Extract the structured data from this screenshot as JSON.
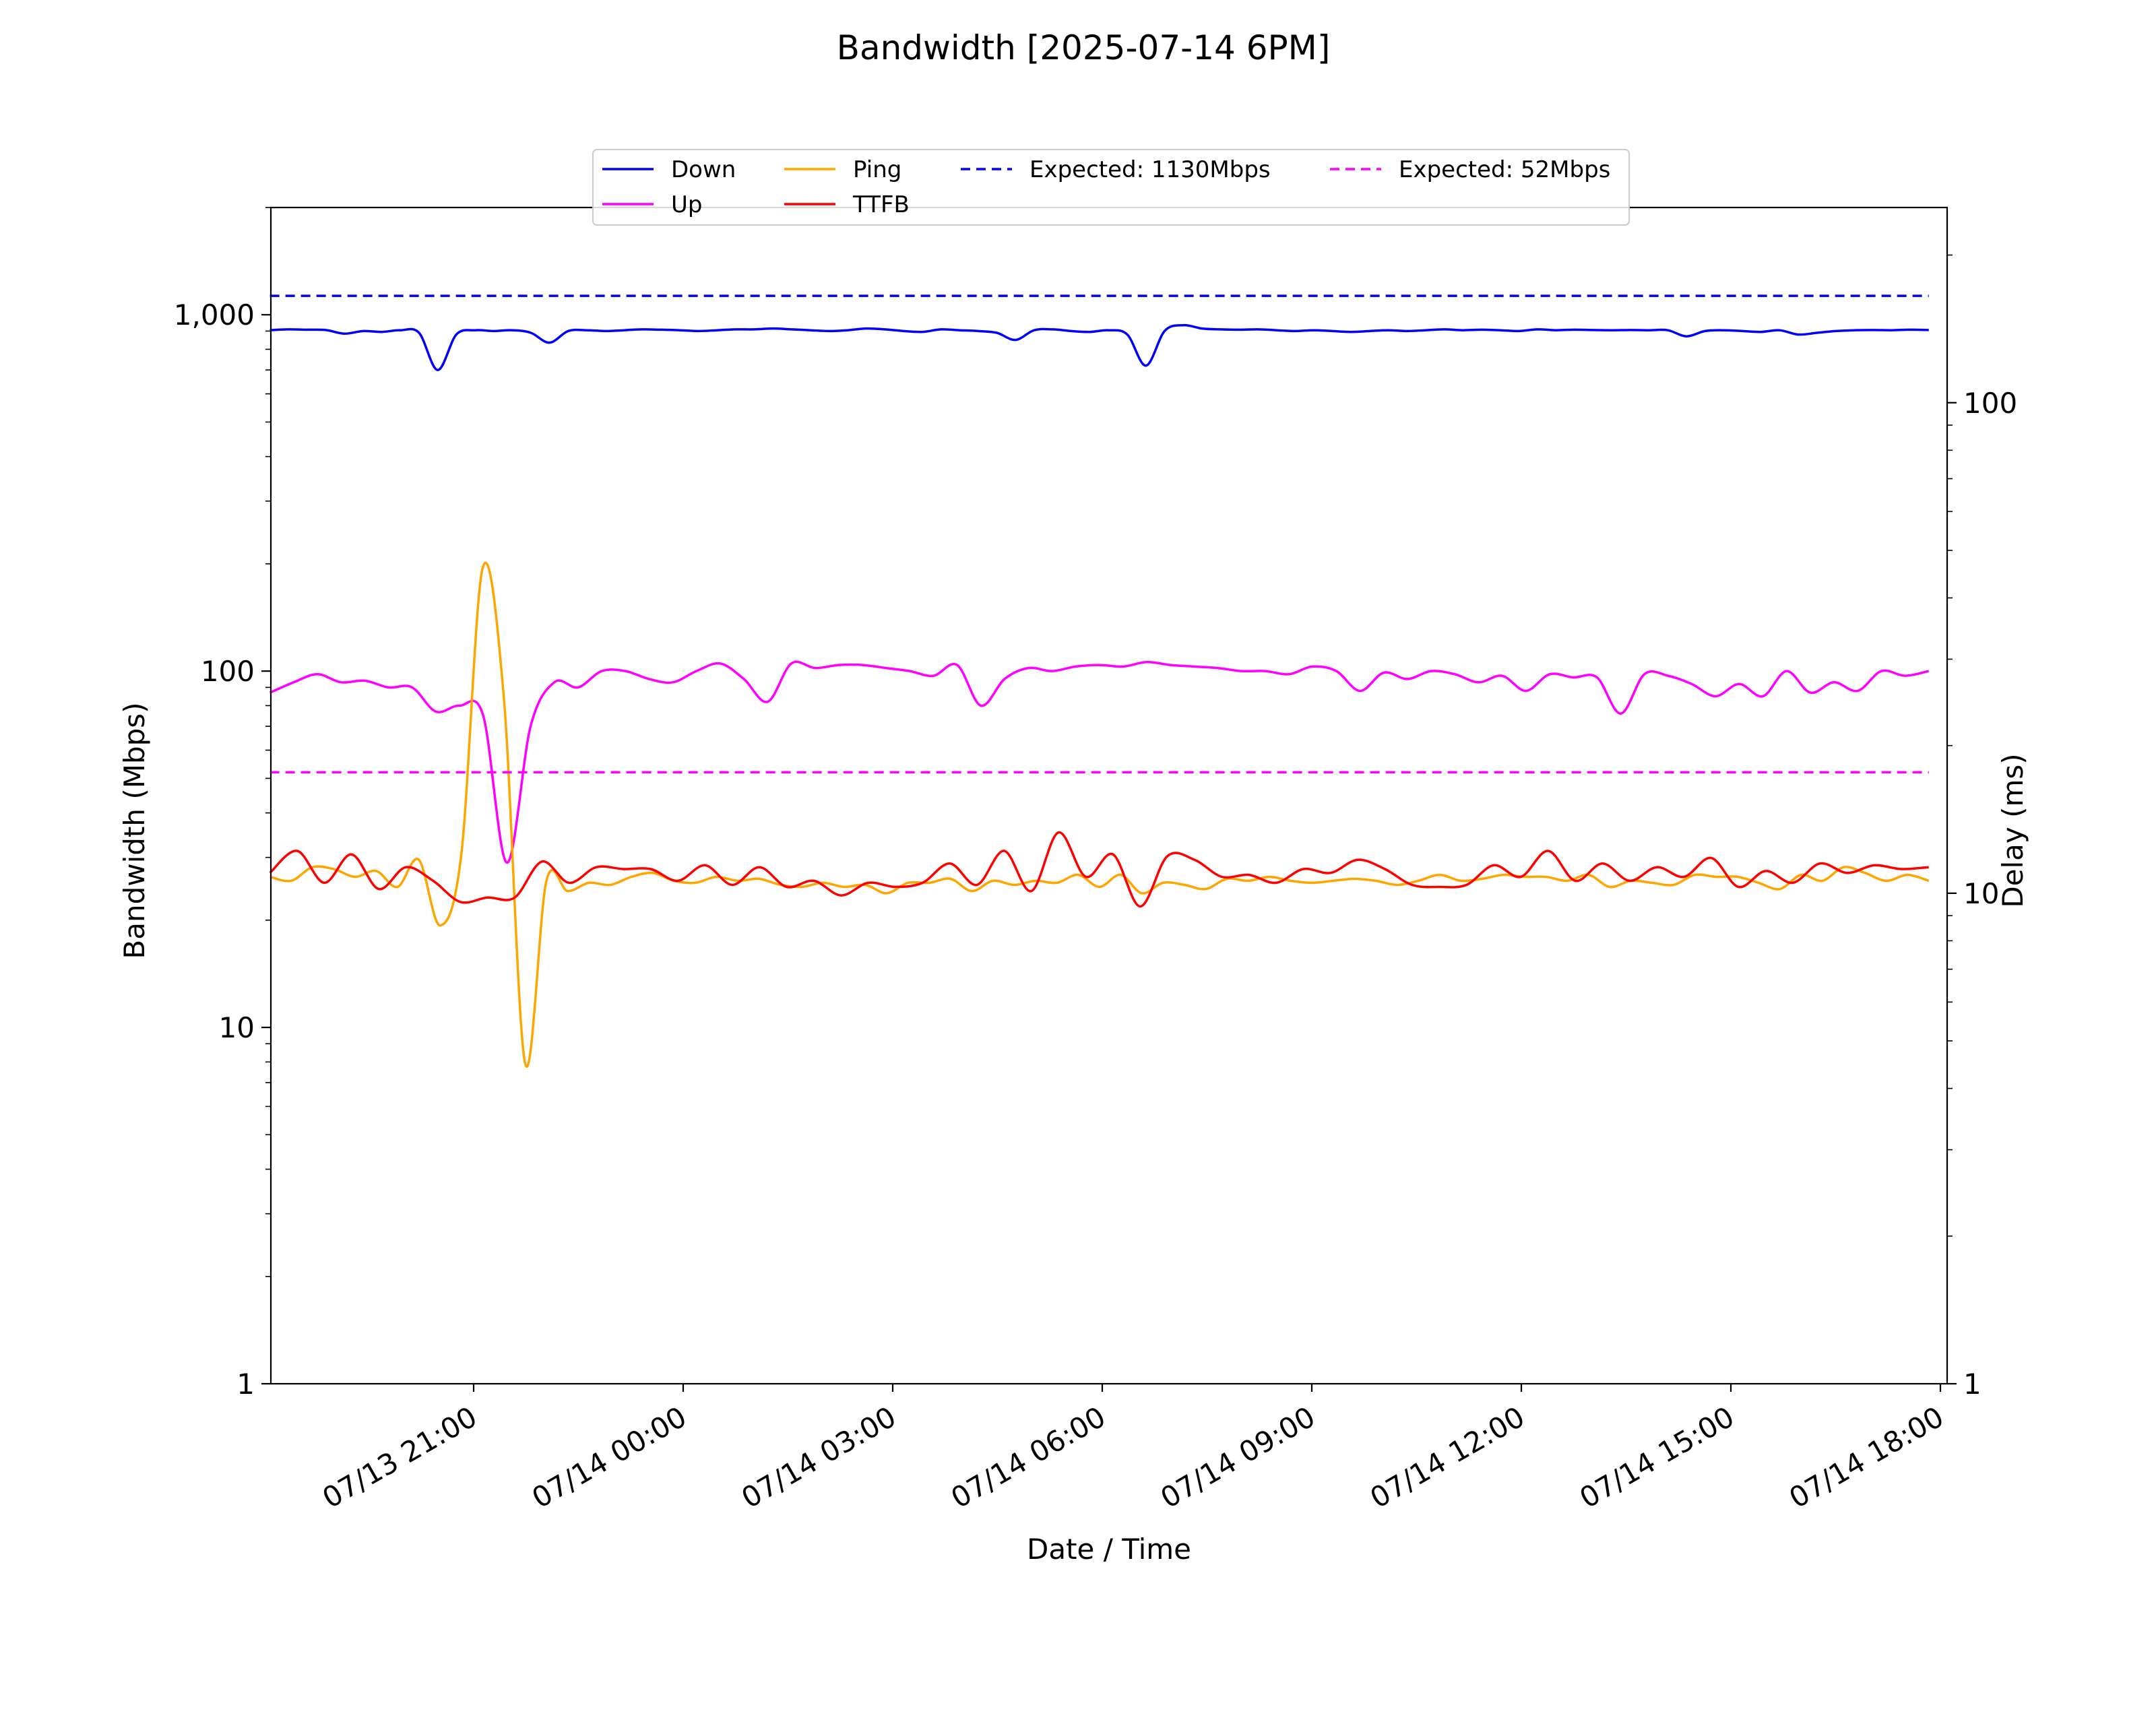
{
  "chart_data": {
    "type": "line",
    "title": "Bandwidth [2025-07-14 6PM]",
    "xlabel": "Date / Time",
    "ylabel": "Bandwidth (Mbps)",
    "ylabel_right": "Delay (ms)",
    "x_range": [
      "2025-07-13 18:05",
      "2025-07-14 18:00"
    ],
    "x_ticks": [
      {
        "t": "2025-07-13 21:00",
        "label": "07/13 21:00"
      },
      {
        "t": "2025-07-14 00:00",
        "label": "07/14 00:00"
      },
      {
        "t": "2025-07-14 03:00",
        "label": "07/14 03:00"
      },
      {
        "t": "2025-07-14 06:00",
        "label": "07/14 06:00"
      },
      {
        "t": "2025-07-14 09:00",
        "label": "07/14 09:00"
      },
      {
        "t": "2025-07-14 12:00",
        "label": "07/14 12:00"
      },
      {
        "t": "2025-07-14 15:00",
        "label": "07/14 15:00"
      },
      {
        "t": "2025-07-14 18:00",
        "label": "07/14 18:00"
      }
    ],
    "y_left": {
      "scale": "log",
      "range": [
        1,
        2000
      ],
      "ticks": [
        1,
        10,
        100,
        1000
      ],
      "tick_labels": [
        "1",
        "10",
        "100",
        "1,000"
      ]
    },
    "y_right": {
      "scale": "log",
      "range": [
        1,
        250
      ],
      "ticks": [
        1,
        10,
        100
      ],
      "tick_labels": [
        "1",
        "10",
        "100"
      ]
    },
    "grid": false,
    "legend_position": "top-center",
    "x_times": [
      "2025-07-13 18:05",
      "2025-07-13 18:20",
      "2025-07-13 18:35",
      "2025-07-13 18:50",
      "2025-07-13 19:05",
      "2025-07-13 19:20",
      "2025-07-13 19:35",
      "2025-07-13 19:50",
      "2025-07-13 20:05",
      "2025-07-13 20:20",
      "2025-07-13 20:35",
      "2025-07-13 20:50",
      "2025-07-13 21:05",
      "2025-07-13 21:20",
      "2025-07-13 21:35",
      "2025-07-13 21:50",
      "2025-07-13 22:05",
      "2025-07-13 22:20",
      "2025-07-13 22:35",
      "2025-07-13 22:50",
      "2025-07-13 23:05",
      "2025-07-13 23:20",
      "2025-07-13 23:35",
      "2025-07-13 23:50",
      "2025-07-14 00:05",
      "2025-07-14 00:20",
      "2025-07-14 00:35",
      "2025-07-14 00:50",
      "2025-07-14 01:05",
      "2025-07-14 01:20",
      "2025-07-14 01:35",
      "2025-07-14 01:50",
      "2025-07-14 02:05",
      "2025-07-14 02:20",
      "2025-07-14 02:35",
      "2025-07-14 02:50",
      "2025-07-14 03:05",
      "2025-07-14 03:20",
      "2025-07-14 03:35",
      "2025-07-14 03:50",
      "2025-07-14 04:05",
      "2025-07-14 04:20",
      "2025-07-14 04:35",
      "2025-07-14 04:50",
      "2025-07-14 05:05",
      "2025-07-14 05:20",
      "2025-07-14 05:35",
      "2025-07-14 05:50",
      "2025-07-14 06:05",
      "2025-07-14 06:20",
      "2025-07-14 06:35",
      "2025-07-14 06:50",
      "2025-07-14 07:05",
      "2025-07-14 07:20",
      "2025-07-14 07:35",
      "2025-07-14 07:50",
      "2025-07-14 08:05",
      "2025-07-14 08:20",
      "2025-07-14 08:35",
      "2025-07-14 08:50",
      "2025-07-14 09:05",
      "2025-07-14 09:20",
      "2025-07-14 09:35",
      "2025-07-14 09:50",
      "2025-07-14 10:05",
      "2025-07-14 10:20",
      "2025-07-14 10:35",
      "2025-07-14 10:50",
      "2025-07-14 11:05",
      "2025-07-14 11:20",
      "2025-07-14 11:35",
      "2025-07-14 11:50",
      "2025-07-14 12:05",
      "2025-07-14 12:20",
      "2025-07-14 12:35",
      "2025-07-14 12:50",
      "2025-07-14 13:05",
      "2025-07-14 13:20",
      "2025-07-14 13:35",
      "2025-07-14 13:50",
      "2025-07-14 14:05",
      "2025-07-14 14:20",
      "2025-07-14 14:35",
      "2025-07-14 14:50",
      "2025-07-14 15:05",
      "2025-07-14 15:20",
      "2025-07-14 15:35",
      "2025-07-14 15:50",
      "2025-07-14 16:05",
      "2025-07-14 16:20",
      "2025-07-14 16:35",
      "2025-07-14 16:50",
      "2025-07-14 17:05",
      "2025-07-14 17:20",
      "2025-07-14 17:35",
      "2025-07-14 17:50"
    ],
    "series": [
      {
        "name": "Down",
        "axis": "left",
        "color": "#0000ff",
        "style": "solid",
        "values": [
          905,
          910,
          908,
          906,
          885,
          900,
          895,
          905,
          890,
          700,
          880,
          905,
          900,
          905,
          890,
          835,
          900,
          905,
          900,
          905,
          910,
          908,
          905,
          900,
          905,
          910,
          910,
          915,
          910,
          905,
          900,
          905,
          915,
          910,
          900,
          895,
          910,
          905,
          900,
          890,
          850,
          905,
          910,
          900,
          895,
          905,
          880,
          720,
          900,
          935,
          915,
          910,
          908,
          910,
          905,
          900,
          905,
          900,
          895,
          900,
          905,
          900,
          905,
          910,
          905,
          908,
          905,
          900,
          910,
          905,
          908,
          906,
          905,
          906,
          905,
          905,
          870,
          900,
          905,
          900,
          895,
          905,
          880,
          890,
          900,
          905,
          906,
          905,
          908,
          906
        ]
      },
      {
        "name": "Up",
        "axis": "left",
        "color": "#ff00ff",
        "style": "solid",
        "values": [
          87,
          93,
          98,
          93,
          94,
          90,
          90,
          77,
          80,
          75,
          29,
          70,
          93,
          90,
          100,
          100,
          95,
          93,
          100,
          105,
          95,
          82,
          105,
          102,
          104,
          104,
          102,
          100,
          97,
          104,
          80,
          95,
          102,
          100,
          103,
          104,
          103,
          106,
          104,
          103,
          102,
          100,
          100,
          98,
          103,
          100,
          88,
          99,
          95,
          100,
          98,
          93,
          97,
          88,
          98,
          96,
          96,
          76,
          98,
          97,
          92,
          85,
          92,
          85,
          100,
          87,
          93,
          88,
          100,
          97,
          100
        ]
      },
      {
        "name": "Ping",
        "axis": "right",
        "color": "#ffa500",
        "style": "solid",
        "values": [
          10.8,
          10.6,
          11.3,
          11.2,
          10.8,
          11.1,
          10.3,
          11.7,
          8.6,
          12.0,
          46.0,
          25.0,
          4.5,
          10.6,
          10.1,
          10.5,
          10.4,
          10.8,
          11.0,
          10.6,
          10.5,
          10.8,
          10.6,
          10.7,
          10.4,
          10.3,
          10.5,
          10.3,
          10.4,
          10.0,
          10.5,
          10.5,
          10.7,
          10.1,
          10.6,
          10.4,
          10.6,
          10.5,
          10.9,
          10.3,
          10.9,
          10.0,
          10.5,
          10.4,
          10.2,
          10.7,
          10.6,
          10.8,
          10.6,
          10.5,
          10.6,
          10.7,
          10.6,
          10.4,
          10.6,
          10.9,
          10.6,
          10.7,
          10.9,
          10.8,
          10.8,
          10.6,
          10.9,
          10.3,
          10.6,
          10.5,
          10.4,
          10.9,
          10.8,
          10.8,
          10.5,
          10.2,
          10.9,
          10.6,
          11.3,
          11.0,
          10.6,
          10.9,
          10.6
        ]
      },
      {
        "name": "TTFB",
        "axis": "right",
        "color": "#ff0000",
        "style": "solid",
        "values": [
          11.0,
          12.2,
          10.5,
          12.0,
          10.2,
          11.3,
          10.6,
          9.6,
          9.8,
          9.8,
          11.6,
          10.5,
          11.3,
          11.2,
          11.2,
          10.6,
          11.4,
          10.4,
          11.3,
          10.3,
          10.6,
          9.9,
          10.5,
          10.3,
          10.5,
          11.5,
          10.4,
          12.2,
          10.1,
          13.3,
          10.8,
          12.0,
          9.4,
          11.9,
          11.7,
          10.8,
          10.9,
          10.5,
          11.2,
          11.0,
          11.7,
          11.2,
          10.4,
          10.3,
          10.4,
          11.4,
          10.8,
          12.2,
          10.6,
          11.5,
          10.6,
          11.3,
          10.8,
          11.8,
          10.3,
          11.1,
          10.5,
          11.5,
          11.0,
          11.4,
          11.2,
          11.3
        ]
      },
      {
        "name": "Expected: 1130Mbps",
        "axis": "left",
        "color": "#0000ff",
        "style": "dashed",
        "constant": 1130
      },
      {
        "name": "Expected: 52Mbps",
        "axis": "left",
        "color": "#ff00ff",
        "style": "dashed",
        "constant": 52
      }
    ]
  }
}
